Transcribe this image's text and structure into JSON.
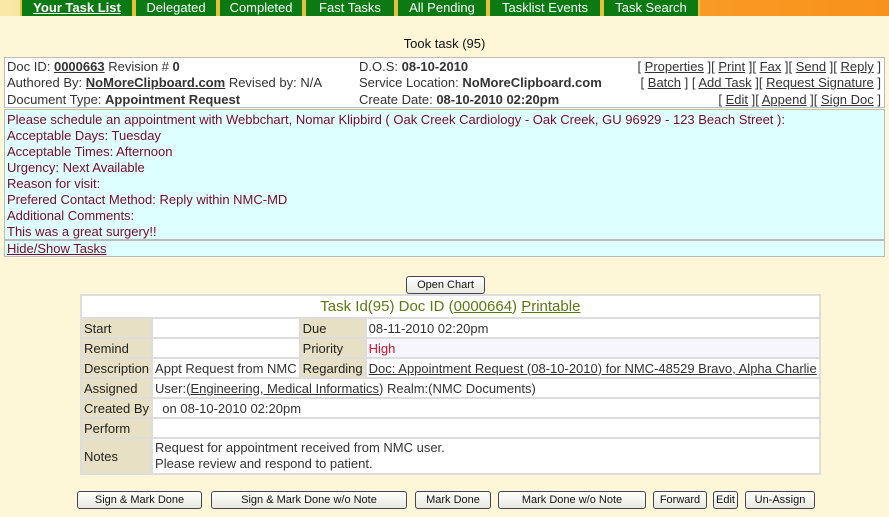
{
  "tabs": [
    "Your Task List",
    "Delegated",
    "Completed",
    "Fast Tasks",
    "All Pending",
    "Tasklist Events",
    "Task Search"
  ],
  "status": "Took task (95)",
  "header": {
    "doc_id_label": "Doc ID:",
    "doc_id": "0000663",
    "revision_label": "Revision #",
    "revision": "0",
    "authored_label": "Authored By:",
    "authored": "NoMoreClipboard.com",
    "revised_label": "Revised by:",
    "revised": "N/A",
    "doctype_label": "Document Type:",
    "doctype": "Appointment Request",
    "dos_label": "D.O.S:",
    "dos": "08-10-2010",
    "location_label": "Service Location:",
    "location": "NoMoreClipboard.com",
    "create_label": "Create Date:",
    "create": "08-10-2010 02:20pm",
    "links_row1": [
      "Properties",
      "Print",
      "Fax",
      "Send",
      "Reply"
    ],
    "links_row2": [
      "Batch",
      "Add Task",
      "Request Signature"
    ],
    "links_row3": [
      "Edit",
      "Append",
      "Sign Doc"
    ]
  },
  "message": [
    "Please schedule an appointment with Webbchart,  Nomar Klipbird ( Oak Creek Cardiology -  Oak Creek, GU 96929 - 123 Beach Street  ):",
    "Acceptable Days: Tuesday",
    "Acceptable Times: Afternoon",
    "Urgency: Next Available",
    "Reason for visit:",
    "Prefered Contact Method: Reply within NMC-MD",
    "Additional Comments:",
    "This was a great surgery!!"
  ],
  "hide_show": "Hide/Show Tasks",
  "open_chart": "Open Chart",
  "task": {
    "title_prefix": "Task Id(95) Doc ID (",
    "doc_id": "0000664",
    "title_suffix": ")",
    "printable": "Printable",
    "start_label": "Start",
    "start": "",
    "due_label": "Due",
    "due": "08-11-2010 02:20pm",
    "remind_label": "Remind",
    "remind": "",
    "priority_label": "Priority",
    "priority": "High",
    "description_label": "Description",
    "description": "Appt Request from NMC",
    "regarding_label": "Regarding",
    "regarding": "Doc: Appointment Request (08-10-2010) for NMC-48529 Bravo, Alpha Charlie",
    "assigned_label": "Assigned",
    "assigned_prefix": "User:(",
    "assigned_user": "Engineering, Medical Informatics",
    "assigned_suffix": ") Realm:(NMC Documents)",
    "created_label": "Created By",
    "created": "  on 08-10-2010 02:20pm",
    "perform_label": "Perform",
    "perform": "",
    "notes_label": "Notes",
    "notes": [
      "Request for appointment received from NMC user.",
      "Please review and respond to patient."
    ]
  },
  "colors": {
    "tab": "#0b7a12",
    "message_bg": "#ddffff",
    "message_text": "#7a0a2a",
    "priority_high": "#e0102a",
    "title": "#5a7a10"
  },
  "buttons": [
    "Sign & Mark Done",
    "Sign & Mark Done w/o Note",
    "Mark Done",
    "Mark Done w/o Note",
    "Forward",
    "Edit",
    "Un-Assign"
  ]
}
